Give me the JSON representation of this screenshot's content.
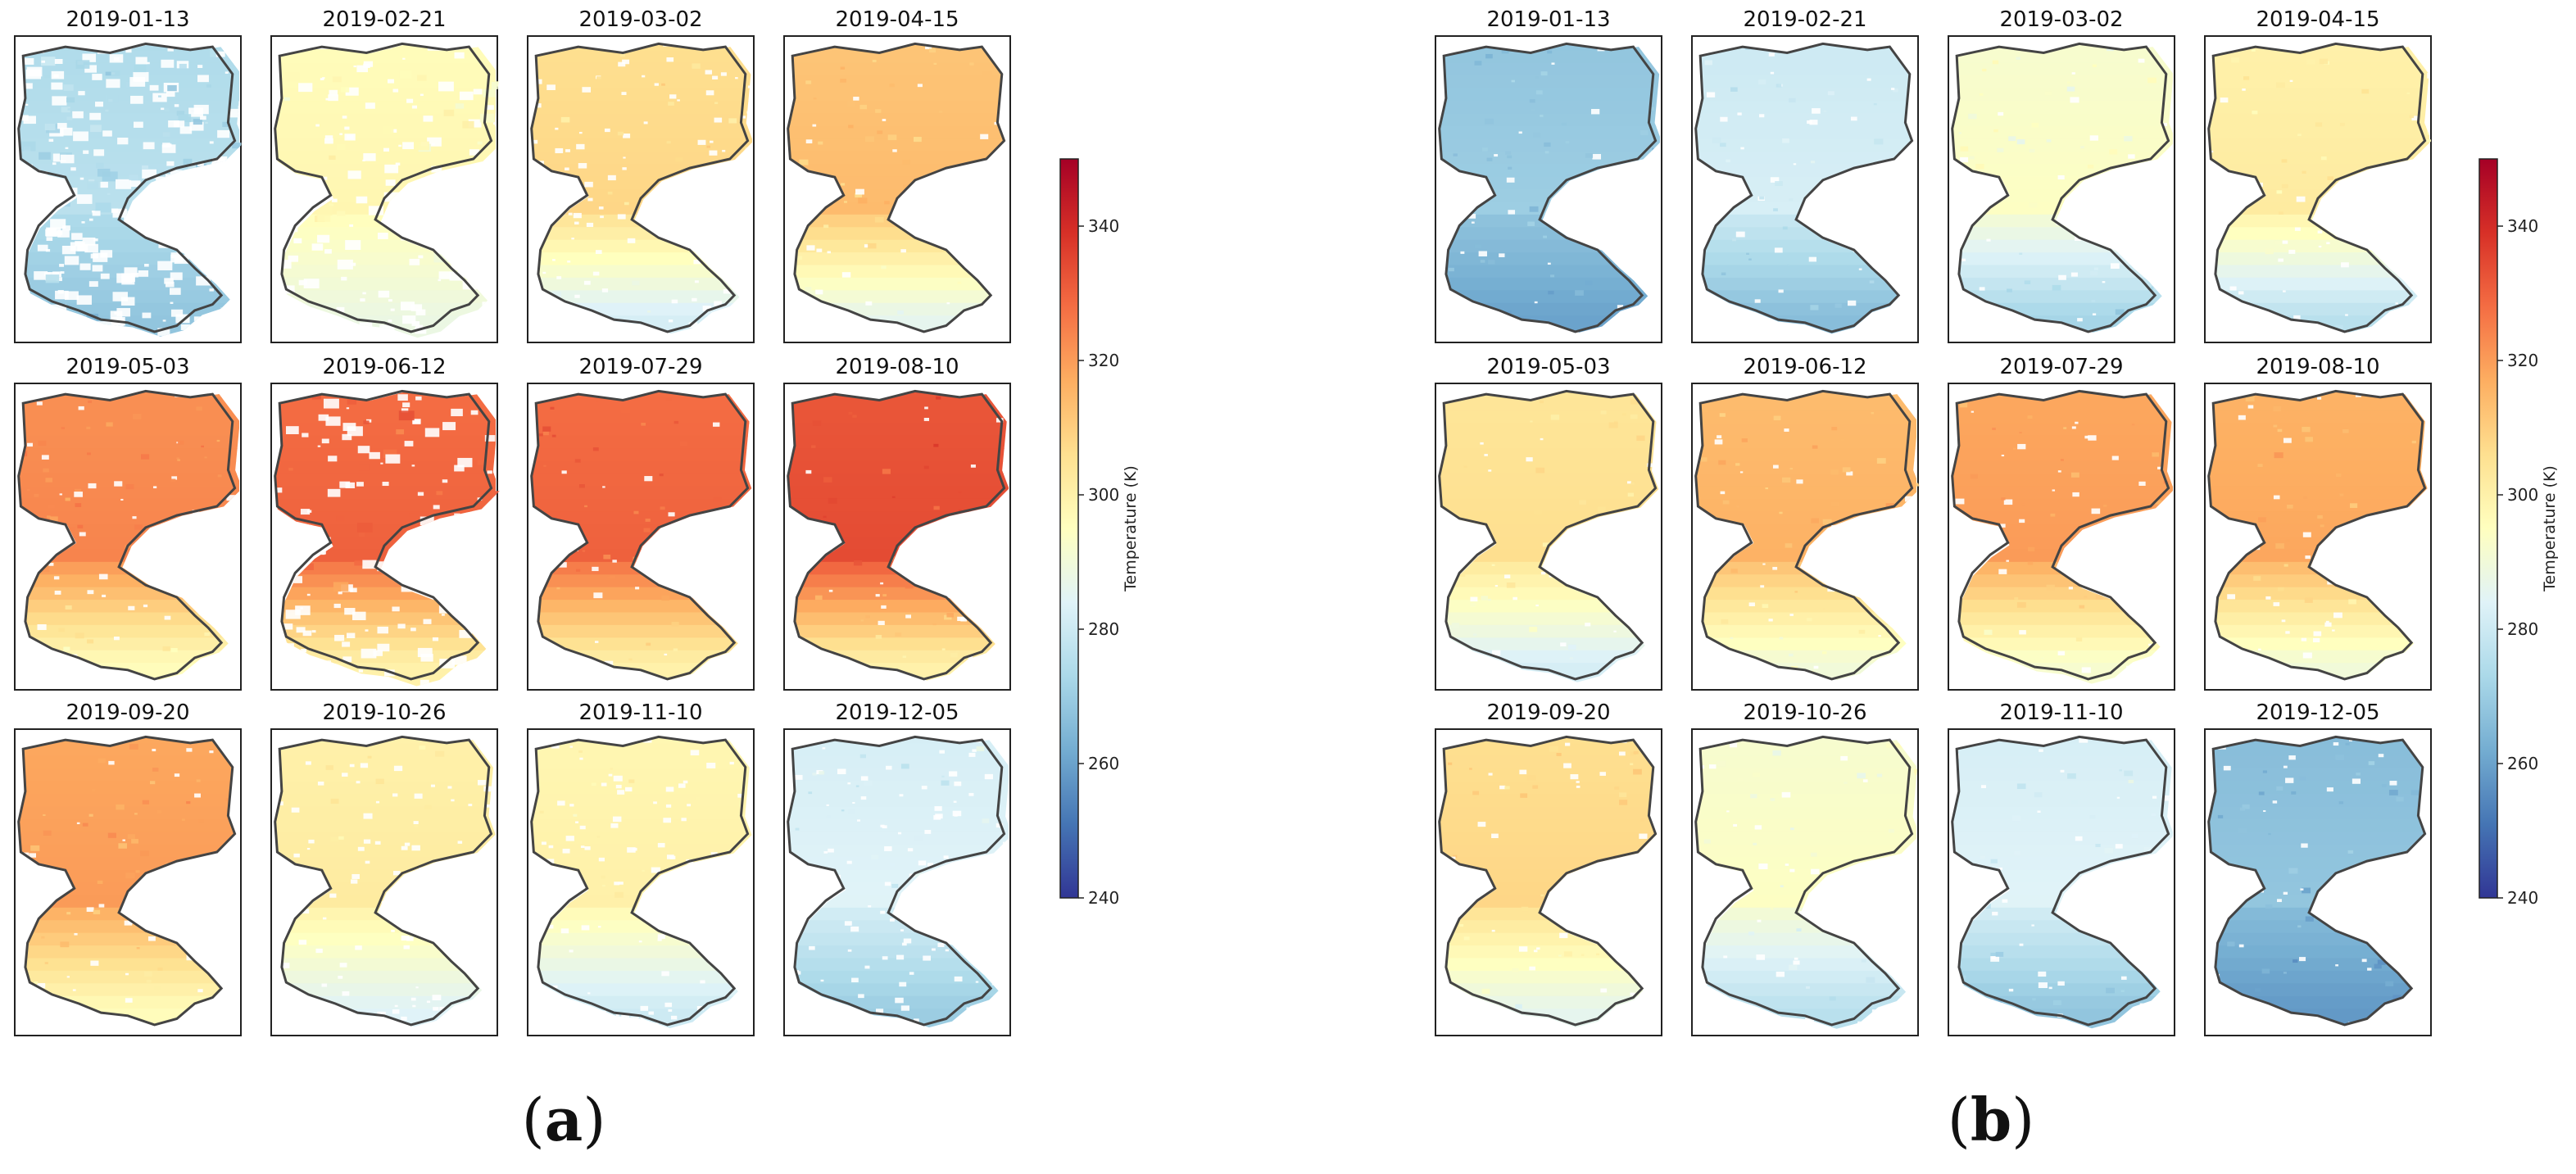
{
  "chart_data": [
    {
      "type": "heatmap",
      "panel_label": "a",
      "dates": [
        "2019-01-13",
        "2019-02-21",
        "2019-03-02",
        "2019-04-15",
        "2019-05-03",
        "2019-06-12",
        "2019-07-29",
        "2019-08-10",
        "2019-09-20",
        "2019-10-26",
        "2019-11-10",
        "2019-12-05"
      ],
      "mean_temperature_k": [
        274,
        296,
        306,
        312,
        322,
        328,
        328,
        332,
        318,
        300,
        298,
        282
      ],
      "low_temperature_k": [
        268,
        288,
        282,
        286,
        296,
        300,
        300,
        300,
        296,
        284,
        280,
        270
      ],
      "missing_fraction": [
        0.3,
        0.12,
        0.08,
        0.03,
        0.05,
        0.12,
        0.02,
        0.02,
        0.02,
        0.06,
        0.07,
        0.1
      ],
      "colorbar": {
        "label": "Temperature (K)",
        "min": 240,
        "max": 350,
        "ticks": [
          240,
          260,
          280,
          300,
          320,
          340
        ],
        "colormap": "RdYlBu_r"
      }
    },
    {
      "type": "heatmap",
      "panel_label": "b",
      "dates": [
        "2019-01-13",
        "2019-02-21",
        "2019-03-02",
        "2019-04-15",
        "2019-05-03",
        "2019-06-12",
        "2019-07-29",
        "2019-08-10",
        "2019-09-20",
        "2019-10-26",
        "2019-11-10",
        "2019-12-05"
      ],
      "mean_temperature_k": [
        268,
        280,
        292,
        300,
        304,
        314,
        318,
        316,
        306,
        292,
        282,
        266
      ],
      "low_temperature_k": [
        260,
        266,
        272,
        276,
        282,
        290,
        292,
        290,
        286,
        276,
        268,
        258
      ],
      "missing_fraction": [
        0.03,
        0.02,
        0.02,
        0.02,
        0.02,
        0.03,
        0.03,
        0.03,
        0.02,
        0.02,
        0.02,
        0.03
      ],
      "colorbar": {
        "label": "Temperature (K)",
        "min": 240,
        "max": 350,
        "ticks": [
          240,
          260,
          280,
          300,
          320,
          340
        ],
        "colormap": "RdYlBu_r"
      }
    }
  ],
  "figure_labels": [
    "(a)",
    "(b)"
  ]
}
